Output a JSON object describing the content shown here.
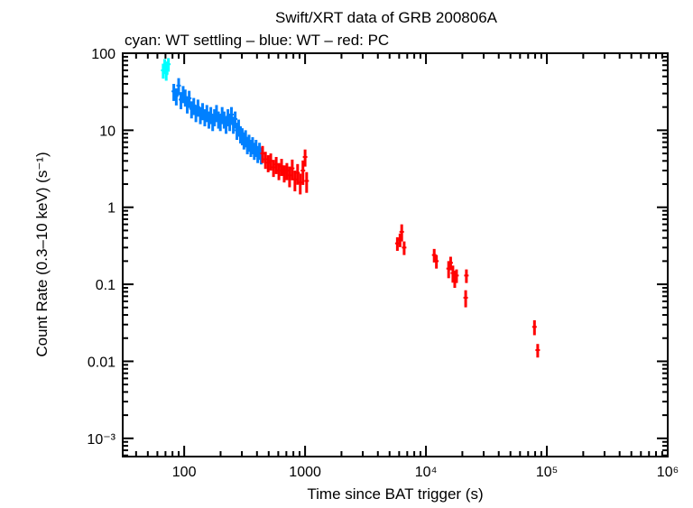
{
  "chart_data": {
    "type": "scatter",
    "title": "Swift/XRT data of GRB 200806A",
    "subtitle": "cyan: WT settling – blue: WT – red: PC",
    "xlabel": "Time since BAT trigger (s)",
    "ylabel": "Count Rate (0.3–10 keV) (s⁻¹)",
    "xscale": "log",
    "yscale": "log",
    "xlim": [
      31,
      1000000
    ],
    "ylim": [
      0.00058,
      100
    ],
    "x_ticks": [
      {
        "v": 100,
        "label": "100"
      },
      {
        "v": 1000,
        "label": "1000"
      },
      {
        "v": 10000,
        "label": "10⁴"
      },
      {
        "v": 100000,
        "label": "10⁵"
      },
      {
        "v": 1000000,
        "label": "10⁶"
      }
    ],
    "y_ticks": [
      {
        "v": 100,
        "label": "100"
      },
      {
        "v": 10,
        "label": "10"
      },
      {
        "v": 1,
        "label": "1"
      },
      {
        "v": 0.1,
        "label": "0.1"
      },
      {
        "v": 0.01,
        "label": "0.01"
      },
      {
        "v": 0.001,
        "label": "10⁻³"
      }
    ],
    "grid": false,
    "series": [
      {
        "color": "#00ffff",
        "points": [
          [
            67,
            60,
            0.22
          ],
          [
            69,
            70,
            0.2
          ],
          [
            71,
            55,
            0.2
          ],
          [
            72,
            65,
            0.2
          ],
          [
            74,
            72,
            0.2
          ]
        ]
      },
      {
        "color": "#0080ff",
        "points": [
          [
            82,
            32,
            0.25
          ],
          [
            86,
            28,
            0.25
          ],
          [
            90,
            38,
            0.25
          ],
          [
            94,
            25,
            0.25
          ],
          [
            98,
            30,
            0.25
          ],
          [
            102,
            27,
            0.25
          ],
          [
            106,
            22,
            0.25
          ],
          [
            110,
            26,
            0.25
          ],
          [
            115,
            19,
            0.25
          ],
          [
            120,
            21,
            0.25
          ],
          [
            125,
            17,
            0.25
          ],
          [
            130,
            20,
            0.25
          ],
          [
            136,
            16,
            0.25
          ],
          [
            142,
            18,
            0.25
          ],
          [
            148,
            15,
            0.25
          ],
          [
            154,
            17,
            0.25
          ],
          [
            160,
            14,
            0.25
          ],
          [
            166,
            16,
            0.25
          ],
          [
            172,
            13,
            0.25
          ],
          [
            178,
            15,
            0.25
          ],
          [
            185,
            17,
            0.25
          ],
          [
            192,
            14,
            0.25
          ],
          [
            199,
            13,
            0.25
          ],
          [
            206,
            16,
            0.25
          ],
          [
            214,
            14,
            0.25
          ],
          [
            222,
            12,
            0.25
          ],
          [
            230,
            15,
            0.25
          ],
          [
            238,
            13,
            0.25
          ],
          [
            246,
            16,
            0.25
          ],
          [
            255,
            12,
            0.25
          ],
          [
            264,
            14,
            0.25
          ],
          [
            273,
            10,
            0.25
          ],
          [
            282,
            11,
            0.25
          ],
          [
            292,
            9,
            0.25
          ],
          [
            302,
            8.5,
            0.25
          ],
          [
            312,
            7.5,
            0.25
          ],
          [
            322,
            8,
            0.25
          ],
          [
            333,
            6.5,
            0.25
          ],
          [
            344,
            7,
            0.25
          ],
          [
            356,
            6,
            0.25
          ],
          [
            368,
            6.5,
            0.25
          ],
          [
            380,
            5.5,
            0.25
          ],
          [
            393,
            6,
            0.25
          ],
          [
            406,
            5,
            0.25
          ],
          [
            420,
            5.5,
            0.25
          ],
          [
            434,
            4.8,
            0.25
          ]
        ]
      },
      {
        "color": "#ff0000",
        "points": [
          [
            445,
            5.0,
            0.25
          ],
          [
            470,
            4.2,
            0.25
          ],
          [
            495,
            3.8,
            0.25
          ],
          [
            520,
            4.0,
            0.25
          ],
          [
            548,
            3.3,
            0.25
          ],
          [
            577,
            3.6,
            0.25
          ],
          [
            607,
            3.0,
            0.25
          ],
          [
            639,
            3.4,
            0.25
          ],
          [
            672,
            2.8,
            0.25
          ],
          [
            707,
            3.0,
            0.25
          ],
          [
            744,
            2.6,
            0.3
          ],
          [
            783,
            3.2,
            0.3
          ],
          [
            824,
            2.3,
            0.3
          ],
          [
            867,
            2.8,
            0.3
          ],
          [
            912,
            2.1,
            0.3
          ],
          [
            960,
            3.0,
            0.35
          ],
          [
            1000,
            4.5,
            0.25
          ],
          [
            1030,
            2.2,
            0.3
          ],
          [
            5800,
            0.34,
            0.2
          ],
          [
            6100,
            0.38,
            0.2
          ],
          [
            6300,
            0.48,
            0.25
          ],
          [
            6600,
            0.3,
            0.2
          ],
          [
            11700,
            0.24,
            0.2
          ],
          [
            12200,
            0.2,
            0.2
          ],
          [
            15400,
            0.16,
            0.25
          ],
          [
            16000,
            0.19,
            0.2
          ],
          [
            16700,
            0.14,
            0.25
          ],
          [
            17300,
            0.12,
            0.25
          ],
          [
            17900,
            0.13,
            0.2
          ],
          [
            21600,
            0.13,
            0.2
          ],
          [
            21300,
            0.067,
            0.25
          ],
          [
            79000,
            0.028,
            0.22
          ],
          [
            84000,
            0.014,
            0.2
          ]
        ]
      }
    ]
  }
}
